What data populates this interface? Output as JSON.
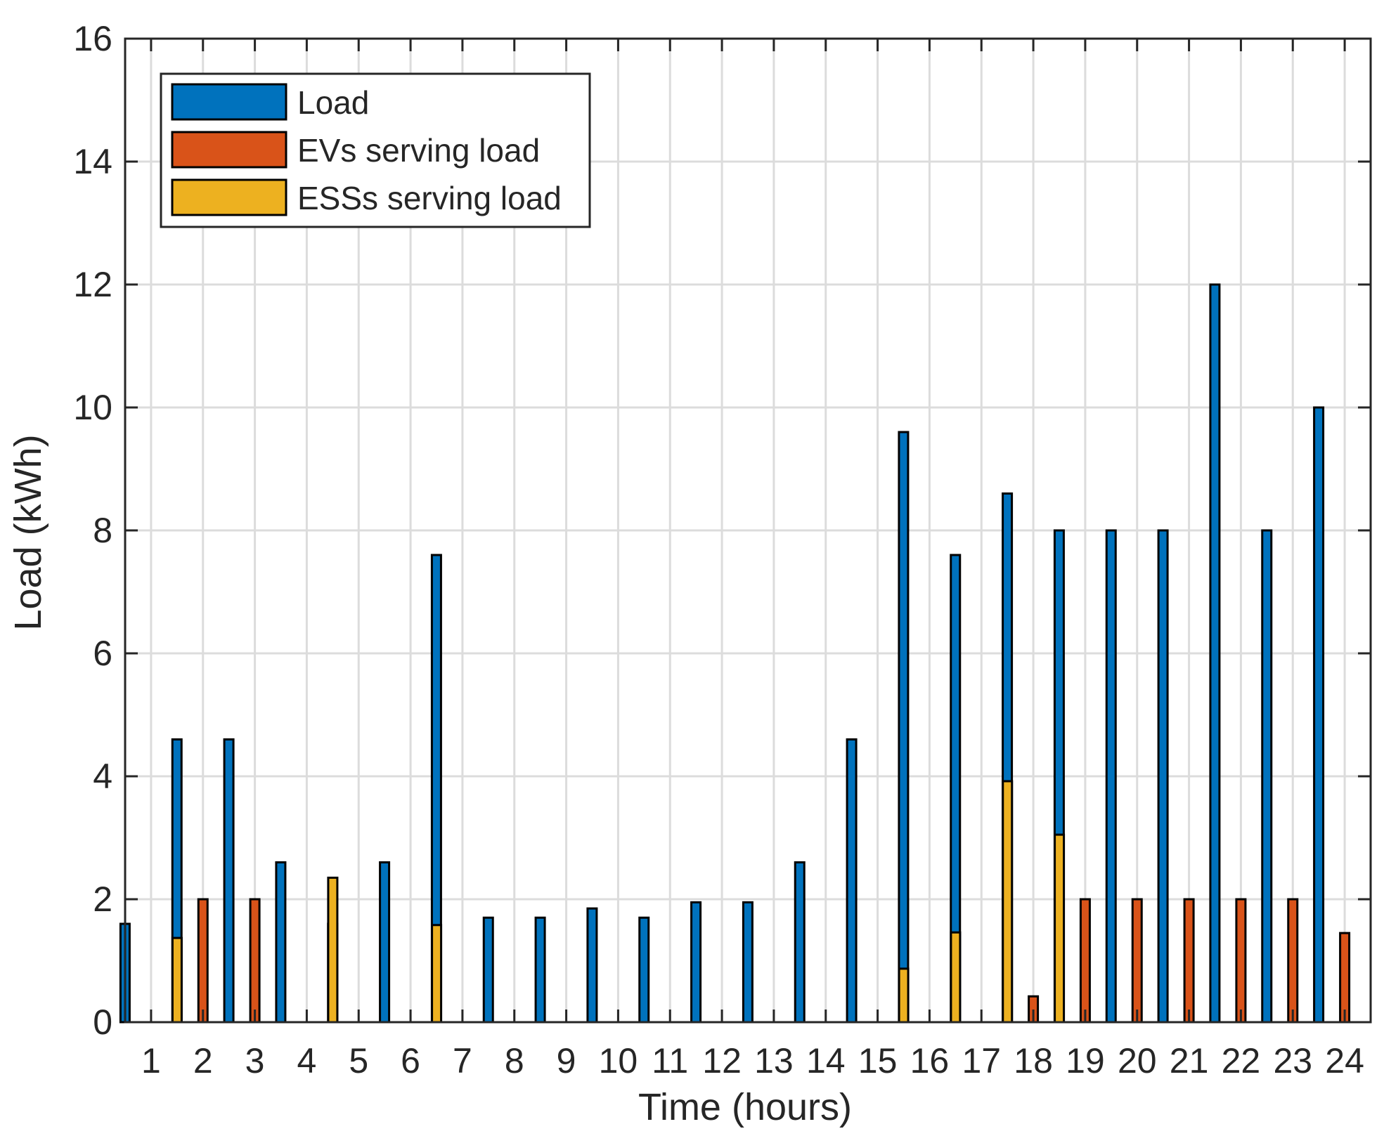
{
  "chart_data": {
    "type": "bar",
    "title": "",
    "xlabel": "Time (hours)",
    "ylabel": "Load (kWh)",
    "ylim": [
      0,
      16
    ],
    "yticks": [
      0,
      2,
      4,
      6,
      8,
      10,
      12,
      14,
      16
    ],
    "grid": true,
    "legend_position": "top-left",
    "categories": [
      "1",
      "2",
      "3",
      "4",
      "5",
      "6",
      "7",
      "8",
      "9",
      "10",
      "11",
      "12",
      "13",
      "14",
      "15",
      "16",
      "17",
      "18",
      "19",
      "20",
      "21",
      "22",
      "23",
      "24"
    ],
    "series": [
      {
        "name": "Load",
        "color": "#0072BD",
        "values": [
          1.6,
          4.6,
          4.6,
          2.6,
          1.6,
          2.6,
          7.6,
          1.7,
          1.7,
          1.85,
          1.7,
          1.95,
          1.95,
          2.6,
          4.6,
          9.6,
          7.6,
          8.6,
          8.0,
          8.0,
          8.0,
          12.0,
          8.0,
          10.0
        ]
      },
      {
        "name": "EVs serving load",
        "color": "#D95319",
        "values": [
          0,
          2.0,
          2.0,
          0,
          0,
          0,
          0,
          0,
          0,
          0,
          0,
          0,
          0,
          0,
          0,
          0,
          0,
          0.42,
          2.0,
          2.0,
          2.0,
          2.0,
          2.0,
          1.45
        ]
      },
      {
        "name": "ESSs serving load",
        "color": "#EDB120",
        "values": [
          1.37,
          0,
          0,
          2.35,
          0,
          1.58,
          0,
          0,
          0,
          0,
          0,
          0,
          0,
          0,
          0.87,
          1.46,
          3.92,
          3.05,
          0,
          0,
          0,
          0,
          0,
          0
        ]
      }
    ]
  }
}
